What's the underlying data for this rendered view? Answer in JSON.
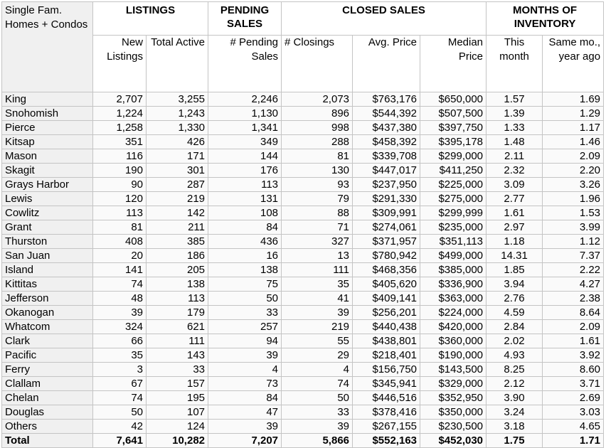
{
  "table": {
    "corner": "Single Fam. Homes + Condos",
    "groups": [
      "LISTINGS",
      "PENDING SALES",
      "CLOSED SALES",
      "MONTHS OF INVENTORY"
    ],
    "columns": [
      "New Listings",
      "Total Active",
      "# Pending Sales",
      "# Closings",
      "Avg. Price",
      "Median Price",
      "This month",
      "Same mo., year ago"
    ],
    "rows": [
      [
        "King",
        "2,707",
        "3,255",
        "2,246",
        "2,073",
        "$763,176",
        "$650,000",
        "1.57",
        "1.69"
      ],
      [
        "Snohomish",
        "1,224",
        "1,243",
        "1,130",
        "896",
        "$544,392",
        "$507,500",
        "1.39",
        "1.29"
      ],
      [
        "Pierce",
        "1,258",
        "1,330",
        "1,341",
        "998",
        "$437,380",
        "$397,750",
        "1.33",
        "1.17"
      ],
      [
        "Kitsap",
        "351",
        "426",
        "349",
        "288",
        "$458,392",
        "$395,178",
        "1.48",
        "1.46"
      ],
      [
        "Mason",
        "116",
        "171",
        "144",
        "81",
        "$339,708",
        "$299,000",
        "2.11",
        "2.09"
      ],
      [
        "Skagit",
        "190",
        "301",
        "176",
        "130",
        "$447,017",
        "$411,250",
        "2.32",
        "2.20"
      ],
      [
        "Grays Harbor",
        "90",
        "287",
        "113",
        "93",
        "$237,950",
        "$225,000",
        "3.09",
        "3.26"
      ],
      [
        "Lewis",
        "120",
        "219",
        "131",
        "79",
        "$291,330",
        "$275,000",
        "2.77",
        "1.96"
      ],
      [
        "Cowlitz",
        "113",
        "142",
        "108",
        "88",
        "$309,991",
        "$299,999",
        "1.61",
        "1.53"
      ],
      [
        "Grant",
        "81",
        "211",
        "84",
        "71",
        "$274,061",
        "$235,000",
        "2.97",
        "3.99"
      ],
      [
        "Thurston",
        "408",
        "385",
        "436",
        "327",
        "$371,957",
        "$351,113",
        "1.18",
        "1.12"
      ],
      [
        "San Juan",
        "20",
        "186",
        "16",
        "13",
        "$780,942",
        "$499,000",
        "14.31",
        "7.37"
      ],
      [
        "Island",
        "141",
        "205",
        "138",
        "111",
        "$468,356",
        "$385,000",
        "1.85",
        "2.22"
      ],
      [
        "Kittitas",
        "74",
        "138",
        "75",
        "35",
        "$405,620",
        "$336,900",
        "3.94",
        "4.27"
      ],
      [
        "Jefferson",
        "48",
        "113",
        "50",
        "41",
        "$409,141",
        "$363,000",
        "2.76",
        "2.38"
      ],
      [
        "Okanogan",
        "39",
        "179",
        "33",
        "39",
        "$256,201",
        "$224,000",
        "4.59",
        "8.64"
      ],
      [
        "Whatcom",
        "324",
        "621",
        "257",
        "219",
        "$440,438",
        "$420,000",
        "2.84",
        "2.09"
      ],
      [
        "Clark",
        "66",
        "111",
        "94",
        "55",
        "$438,801",
        "$360,000",
        "2.02",
        "1.61"
      ],
      [
        "Pacific",
        "35",
        "143",
        "39",
        "29",
        "$218,401",
        "$190,000",
        "4.93",
        "3.92"
      ],
      [
        "Ferry",
        "3",
        "33",
        "4",
        "4",
        "$156,750",
        "$143,500",
        "8.25",
        "8.60"
      ],
      [
        "Clallam",
        "67",
        "157",
        "73",
        "74",
        "$345,941",
        "$329,000",
        "2.12",
        "3.71"
      ],
      [
        "Chelan",
        "74",
        "195",
        "84",
        "50",
        "$446,516",
        "$352,950",
        "3.90",
        "2.69"
      ],
      [
        "Douglas",
        "50",
        "107",
        "47",
        "33",
        "$378,416",
        "$350,000",
        "3.24",
        "3.03"
      ],
      [
        "Others",
        "42",
        "124",
        "39",
        "39",
        "$267,155",
        "$230,500",
        "3.18",
        "4.65"
      ]
    ],
    "total": [
      "Total",
      "7,641",
      "10,282",
      "7,207",
      "5,866",
      "$552,163",
      "$452,030",
      "1.75",
      "1.71"
    ]
  }
}
